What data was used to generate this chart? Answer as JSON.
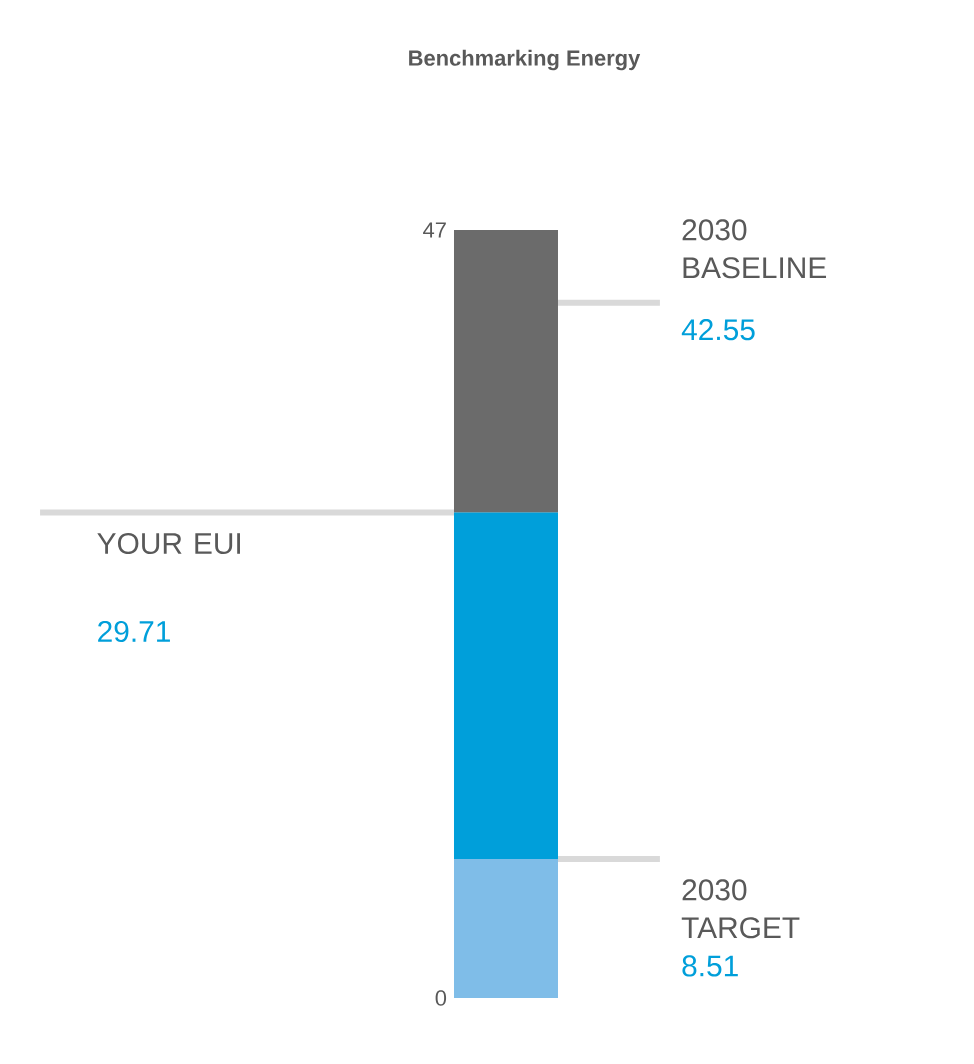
{
  "chart_data": {
    "type": "bar",
    "title": "Benchmarking Energy",
    "stacked": true,
    "categories": [
      null
    ],
    "series": [
      {
        "color": "#7fbde8",
        "values": [
          8.51
        ]
      },
      {
        "color": "#009fda",
        "values": [
          21.2
        ]
      },
      {
        "color": "#6b6b6b",
        "values": [
          17.29
        ]
      }
    ],
    "ylim": [
      0,
      47
    ],
    "yticks": [
      0,
      47
    ],
    "tick_labels": "y",
    "ref_lines": [
      {
        "axis": "y",
        "value": 42.55,
        "label": "2030 BASELINE",
        "color": "#d9d9d9"
      },
      {
        "axis": "y",
        "value": 29.71,
        "label": "YOUR EUI",
        "color": "#d9d9d9"
      },
      {
        "axis": "y",
        "value": 8.51,
        "label": "2030 TARGET",
        "color": "#d9d9d9"
      }
    ],
    "annotations": [
      "42.55",
      "29.71",
      "8.51"
    ]
  }
}
